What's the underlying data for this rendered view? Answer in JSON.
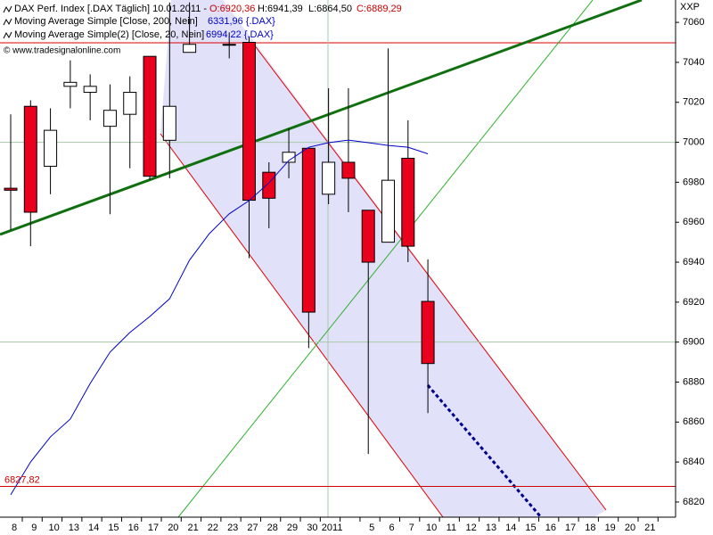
{
  "chart_data": {
    "type": "candlestick",
    "categories": [
      "8",
      "9",
      "10",
      "13",
      "14",
      "15",
      "16",
      "17",
      "20",
      "21",
      "22",
      "23",
      "27",
      "28",
      "29",
      "30",
      "2011",
      null,
      "5",
      "6",
      "7",
      "10",
      "11",
      "12",
      "13",
      "14",
      "15",
      "16",
      "17",
      "18",
      "19",
      "20",
      "21"
    ],
    "series": [
      {
        "name": "DAX Perf. Index",
        "up_color": "#ffffff",
        "down_color": "#e8001c",
        "open": [
          6977,
          7018,
          6988,
          7028,
          7025,
          7008,
          7014,
          7043,
          7001,
          7045,
          null,
          7049,
          7050,
          6985,
          6990,
          6997,
          6974,
          6990,
          6966,
          6950,
          6992,
          6920.36,
          null,
          null,
          null,
          null,
          null,
          null,
          null,
          null,
          null,
          null,
          null
        ],
        "high": [
          7014,
          7021,
          7017,
          7041,
          7034,
          7029,
          7033,
          7043,
          7070,
          7070,
          null,
          7055,
          7053,
          6990,
          7007,
          6997,
          7027,
          7027,
          6966,
          7047,
          7011,
          6941.39,
          null,
          null,
          null,
          null,
          null,
          null,
          null,
          null,
          null,
          null,
          null
        ],
        "low": [
          6956,
          6948,
          6974,
          7017,
          7011,
          6964,
          6987,
          6981,
          6982,
          7045,
          null,
          7042,
          6942,
          6957,
          6982,
          6897,
          6969,
          6965,
          6844,
          6950,
          6940,
          6864.5,
          null,
          null,
          null,
          null,
          null,
          null,
          null,
          null,
          null,
          null,
          null
        ],
        "close": [
          6976,
          6965,
          7006,
          7030,
          7028,
          7016,
          7025,
          6983,
          7018,
          7049,
          null,
          7049,
          6971,
          6972,
          6995,
          6915,
          6990,
          6982,
          6940,
          6981,
          6948,
          6889.29,
          null,
          null,
          null,
          null,
          null,
          null,
          null,
          null,
          null,
          null,
          null
        ]
      },
      {
        "name": "Moving Average Simple(2) [Close, 20, Nein]",
        "color": "#0000cc",
        "values": [
          6823.6,
          6840,
          6852.6,
          6861.5,
          6879.3,
          6895,
          6904.8,
          6912.8,
          6921.7,
          6941,
          6954.3,
          6964.2,
          6970.8,
          6979.7,
          6990.9,
          6997.5,
          6999.8,
          7001.1,
          6999.8,
          6998.4,
          6997.5,
          6994.22,
          null,
          null,
          null,
          null,
          null,
          null,
          null,
          null,
          null,
          null,
          null
        ]
      }
    ],
    "legend": {
      "line1": "DAX Perf. Index [.DAX  Täglich] 10.01.2011 -",
      "open": "O:6920,36",
      "high": "H:6941,39",
      "low": "L:6864,50",
      "close": "C:6889,29",
      "ma200": "Moving Average Simple [Close, 200, Nein]",
      "ma200_value": "6331,96 {.DAX}",
      "ma20": "Moving Average Simple(2) [Close, 20, Nein]",
      "ma20_value": "6994,22 {.DAX}",
      "copyright": "© www.tradesignalonline.com"
    },
    "y_axis_label": "XXP",
    "ylim": [
      6812.4,
      7071.2
    ],
    "yticks": [
      6820,
      6840,
      6860,
      6880,
      6900,
      6920,
      6940,
      6960,
      6980,
      7000,
      7020,
      7040,
      7060
    ],
    "grid_lines": [
      6900,
      7000
    ],
    "hlines": [
      {
        "value": 6827.82,
        "label": "6827,82",
        "color": "#cc0000"
      }
    ]
  }
}
